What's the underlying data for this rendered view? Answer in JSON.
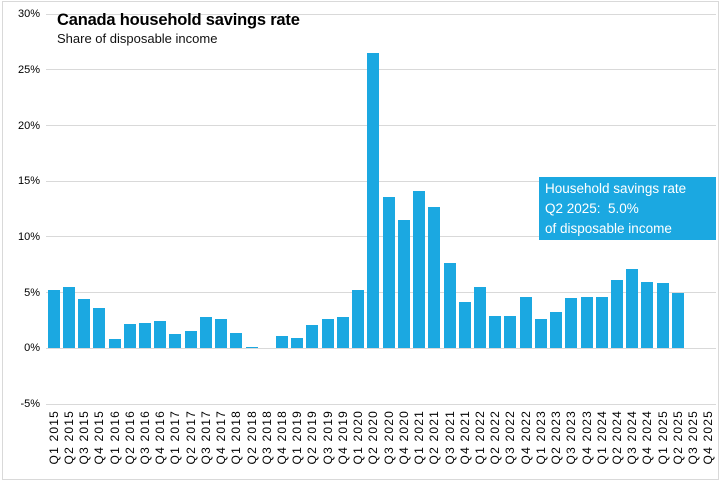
{
  "header": {
    "title": "Canada household savings rate",
    "subtitle": "Share of disposable income"
  },
  "chart_data": {
    "type": "bar",
    "title": "Canada household savings rate",
    "subtitle": "Share of disposable income",
    "xlabel": "",
    "ylabel": "",
    "ylim": [
      -5,
      30
    ],
    "ytick_values": [
      30,
      25,
      20,
      15,
      10,
      5,
      0,
      -5
    ],
    "ytick_labels": [
      "30%",
      "25%",
      "20%",
      "15%",
      "10%",
      "5%",
      "0%",
      "-5%"
    ],
    "grid": "horizontal",
    "bar_color": "#1BA8E1",
    "gridline_color": "#D9D9D9",
    "categories": [
      "Q1 2015",
      "Q2 2015",
      "Q3 2015",
      "Q4 2015",
      "Q1 2016",
      "Q2 2016",
      "Q3 2016",
      "Q4 2016",
      "Q1 2017",
      "Q2 2017",
      "Q3 2017",
      "Q4 2017",
      "Q1 2018",
      "Q2 2018",
      "Q3 2018",
      "Q4 2018",
      "Q1 2019",
      "Q2 2019",
      "Q3 2019",
      "Q4 2019",
      "Q1 2020",
      "Q2 2020",
      "Q3 2020",
      "Q4 2020",
      "Q1 2021",
      "Q2 2021",
      "Q3 2021",
      "Q4 2021",
      "Q1 2022",
      "Q2 2022",
      "Q3 2022",
      "Q4 2022",
      "Q1 2023",
      "Q2 2023",
      "Q3 2023",
      "Q4 2023",
      "Q1 2024",
      "Q2 2024",
      "Q3 2024",
      "Q4 2024",
      "Q1 2025",
      "Q2 2025",
      "Q3 2025",
      "Q4 2025"
    ],
    "values": [
      5.2,
      5.5,
      4.4,
      3.6,
      0.8,
      2.2,
      2.3,
      2.5,
      1.3,
      1.6,
      2.8,
      2.6,
      1.4,
      0.1,
      0.0,
      1.1,
      0.9,
      2.1,
      2.6,
      2.8,
      5.2,
      26.5,
      13.6,
      11.5,
      14.1,
      12.7,
      7.7,
      4.2,
      5.5,
      2.9,
      2.9,
      4.6,
      2.6,
      3.3,
      4.5,
      4.6,
      4.6,
      6.1,
      7.1,
      6.0,
      5.9,
      5.0
    ],
    "annotation": {
      "bg_color": "#1BA8E1",
      "text_color": "#FFFFFF",
      "lines": [
        "Household savings rate",
        "Q2 2025:  5.0%",
        "of disposable income"
      ]
    }
  }
}
